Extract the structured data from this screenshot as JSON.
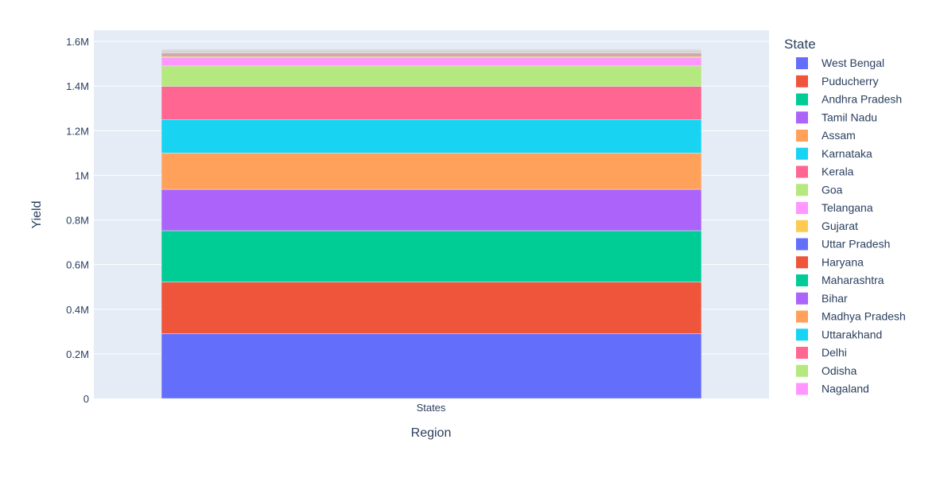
{
  "chart_data": {
    "type": "bar",
    "barmode": "stack",
    "categories": [
      "States"
    ],
    "xlabel": "Region",
    "ylabel": "Yield",
    "ylim": [
      0,
      1650000
    ],
    "yticks": [
      {
        "value": 0,
        "label": "0"
      },
      {
        "value": 200000,
        "label": "0.2M"
      },
      {
        "value": 400000,
        "label": "0.4M"
      },
      {
        "value": 600000,
        "label": "0.6M"
      },
      {
        "value": 800000,
        "label": "0.8M"
      },
      {
        "value": 1000000,
        "label": "1M"
      },
      {
        "value": 1200000,
        "label": "1.2M"
      },
      {
        "value": 1400000,
        "label": "1.4M"
      },
      {
        "value": 1600000,
        "label": "1.6M"
      }
    ],
    "grid": true,
    "legend_title": "State",
    "legend_position": "right",
    "series": [
      {
        "name": "West Bengal",
        "values": [
          290000
        ],
        "color": "#636efa"
      },
      {
        "name": "Puducherry",
        "values": [
          232000
        ],
        "color": "#ef553b"
      },
      {
        "name": "Andhra Pradesh",
        "values": [
          230000
        ],
        "color": "#00cc96"
      },
      {
        "name": "Tamil Nadu",
        "values": [
          185000
        ],
        "color": "#ab63fa"
      },
      {
        "name": "Assam",
        "values": [
          163000
        ],
        "color": "#ffa15a"
      },
      {
        "name": "Karnataka",
        "values": [
          150000
        ],
        "color": "#19d3f3"
      },
      {
        "name": "Kerala",
        "values": [
          148000
        ],
        "color": "#ff6692"
      },
      {
        "name": "Goa",
        "values": [
          92000
        ],
        "color": "#b6e880"
      },
      {
        "name": "Telangana",
        "values": [
          38000
        ],
        "color": "#ff97ff"
      },
      {
        "name": "Gujarat",
        "values": [
          6000
        ],
        "color": "#fecb52"
      },
      {
        "name": "Uttar Pradesh",
        "values": [
          5000
        ],
        "color": "#636efa"
      },
      {
        "name": "Haryana",
        "values": [
          4000
        ],
        "color": "#ef553b"
      },
      {
        "name": "Maharashtra",
        "values": [
          4000
        ],
        "color": "#00cc96"
      },
      {
        "name": "Bihar",
        "values": [
          3000
        ],
        "color": "#ab63fa"
      },
      {
        "name": "Madhya Pradesh",
        "values": [
          3000
        ],
        "color": "#ffa15a"
      },
      {
        "name": "Uttarakhand",
        "values": [
          3000
        ],
        "color": "#19d3f3"
      },
      {
        "name": "Delhi",
        "values": [
          3000
        ],
        "color": "#ff6692"
      },
      {
        "name": "Odisha",
        "values": [
          3000
        ],
        "color": "#b6e880"
      },
      {
        "name": "Nagaland",
        "values": [
          3000
        ],
        "color": "#ff97ff"
      }
    ]
  }
}
